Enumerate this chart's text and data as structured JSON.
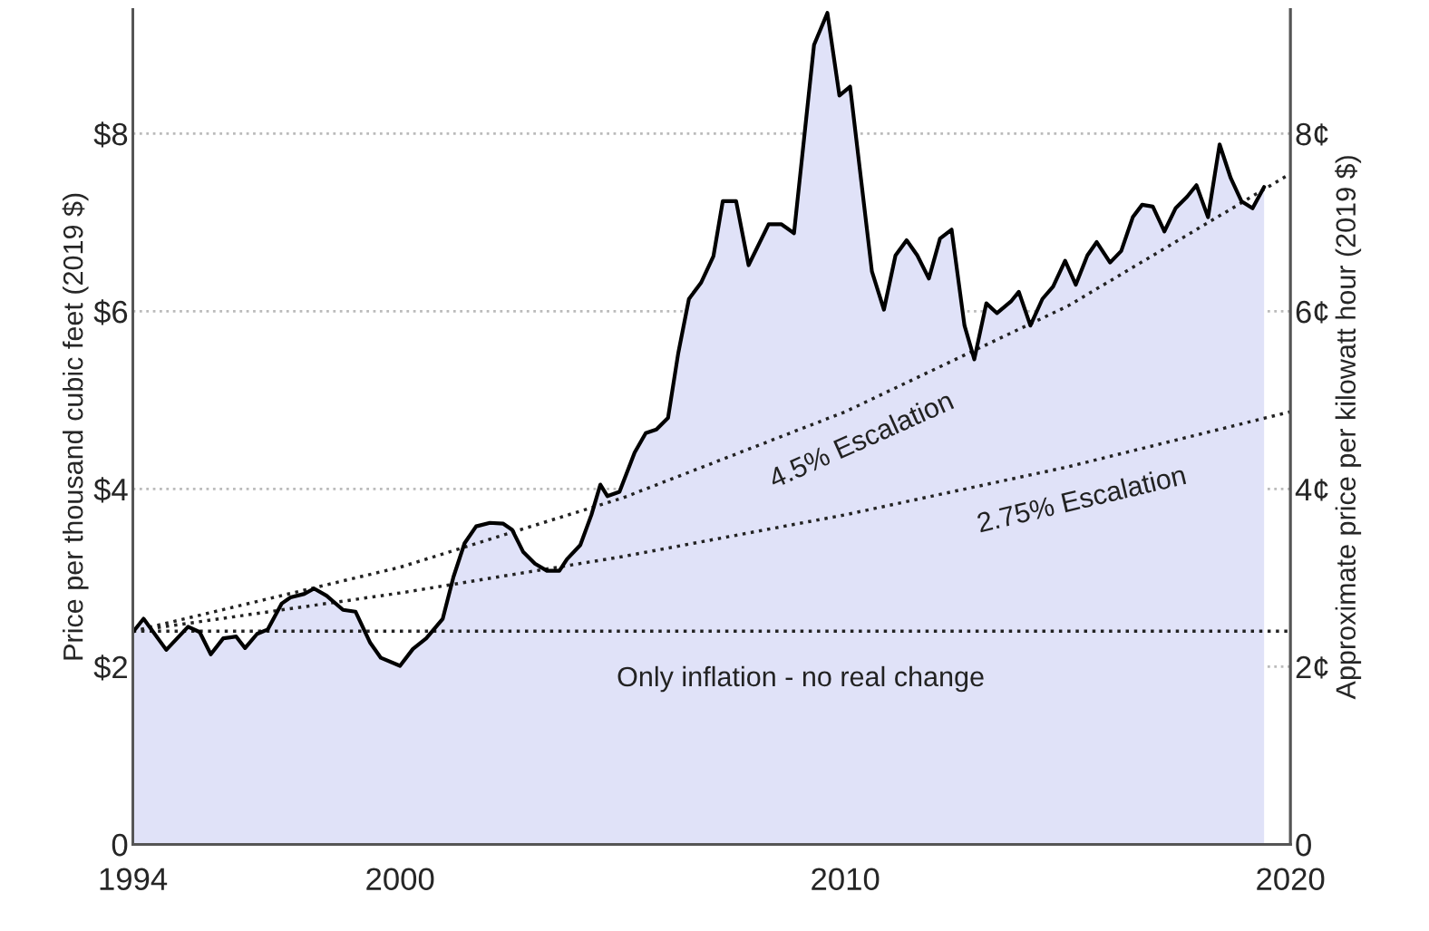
{
  "chart_data": {
    "type": "area",
    "ylabel": "Price per thousand cubic feet (2019 $)",
    "y2label": "Approximate price per kilowatt hour (2019 $)",
    "xlim": [
      1994,
      2020
    ],
    "xticks": [
      1994,
      2000,
      2010,
      2020
    ],
    "ylim": [
      0,
      9.4
    ],
    "yticks": [
      {
        "value": 0,
        "label": "0"
      },
      {
        "value": 2,
        "label": "$2"
      },
      {
        "value": 4,
        "label": "$4"
      },
      {
        "value": 6,
        "label": "$6"
      },
      {
        "value": 8,
        "label": "$8"
      }
    ],
    "y2lim": [
      0,
      9.4
    ],
    "y2ticks": [
      {
        "value": 0,
        "label": "0"
      },
      {
        "value": 2,
        "label": "2¢"
      },
      {
        "value": 4,
        "label": "4¢"
      },
      {
        "value": 6,
        "label": "6¢"
      },
      {
        "value": 8,
        "label": "8¢"
      }
    ],
    "grid": "y",
    "series": [
      {
        "color": "#e0e2f8",
        "x": [
          1994.0,
          1994.24,
          1994.75,
          1995.24,
          1995.5,
          1995.75,
          1996.03,
          1996.32,
          1996.52,
          1996.79,
          1997.03,
          1997.34,
          1997.54,
          1997.85,
          1998.07,
          1998.35,
          1998.72,
          1999.0,
          1999.33,
          1999.57,
          2000.0,
          2000.29,
          2000.59,
          2000.96,
          2001.2,
          2001.45,
          2001.71,
          2002.02,
          2002.32,
          2002.52,
          2002.77,
          2003.03,
          2003.3,
          2003.58,
          2003.75,
          2004.05,
          2004.3,
          2004.5,
          2004.66,
          2004.93,
          2005.27,
          2005.52,
          2005.76,
          2006.02,
          2006.25,
          2006.49,
          2006.76,
          2007.04,
          2007.25,
          2007.55,
          2007.83,
          2008.28,
          2008.57,
          2008.85,
          2009.3,
          2009.6,
          2009.87,
          2010.11,
          2010.36,
          2010.6,
          2010.87,
          2011.13,
          2011.38,
          2011.62,
          2011.88,
          2012.13,
          2012.39,
          2012.68,
          2012.9,
          2013.17,
          2013.41,
          2013.72,
          2013.9,
          2014.16,
          2014.43,
          2014.67,
          2014.94,
          2015.18,
          2015.44,
          2015.65,
          2015.95,
          2016.2,
          2016.46,
          2016.67,
          2016.91,
          2017.17,
          2017.42,
          2017.68,
          2017.89,
          2018.15,
          2018.41,
          2018.66,
          2018.9,
          2019.15,
          2019.41
        ],
        "values": [
          2.39,
          2.54,
          2.19,
          2.45,
          2.39,
          2.14,
          2.32,
          2.34,
          2.21,
          2.37,
          2.42,
          2.71,
          2.78,
          2.82,
          2.88,
          2.8,
          2.64,
          2.62,
          2.27,
          2.1,
          2.01,
          2.2,
          2.32,
          2.54,
          3.01,
          3.39,
          3.58,
          3.62,
          3.61,
          3.54,
          3.29,
          3.16,
          3.08,
          3.08,
          3.21,
          3.37,
          3.71,
          4.05,
          3.92,
          3.97,
          4.41,
          4.63,
          4.67,
          4.8,
          5.53,
          6.14,
          6.32,
          6.62,
          7.24,
          7.24,
          6.52,
          6.98,
          6.98,
          6.88,
          9.0,
          9.36,
          8.43,
          8.53,
          7.47,
          6.45,
          6.02,
          6.63,
          6.8,
          6.63,
          6.37,
          6.82,
          6.92,
          5.84,
          5.46,
          6.09,
          5.98,
          6.11,
          6.22,
          5.84,
          6.14,
          6.28,
          6.57,
          6.3,
          6.63,
          6.78,
          6.55,
          6.68,
          7.06,
          7.2,
          7.18,
          6.9,
          7.16,
          7.29,
          7.42,
          7.06,
          7.88,
          7.5,
          7.24,
          7.16,
          7.4
        ]
      },
      {
        "type": "line",
        "name": "4.5% Escalation",
        "color": "#222222",
        "line_style": "dotted",
        "x": [
          1994,
          2000,
          2005,
          2010,
          2015,
          2020
        ],
        "values": [
          2.4,
          3.12,
          3.9,
          4.87,
          6.06,
          7.55
        ]
      },
      {
        "type": "line",
        "name": "2.75% Escalation",
        "color": "#222222",
        "line_style": "dotted",
        "x": [
          1994,
          2000,
          2005,
          2010,
          2015,
          2020
        ],
        "values": [
          2.4,
          2.83,
          3.24,
          3.71,
          4.25,
          4.87
        ]
      }
    ],
    "ref_lines": [
      {
        "axis": "y",
        "value": 2.4,
        "label": "Only inflation - no real change",
        "color": "#222222",
        "line_style": "dotted"
      }
    ]
  }
}
